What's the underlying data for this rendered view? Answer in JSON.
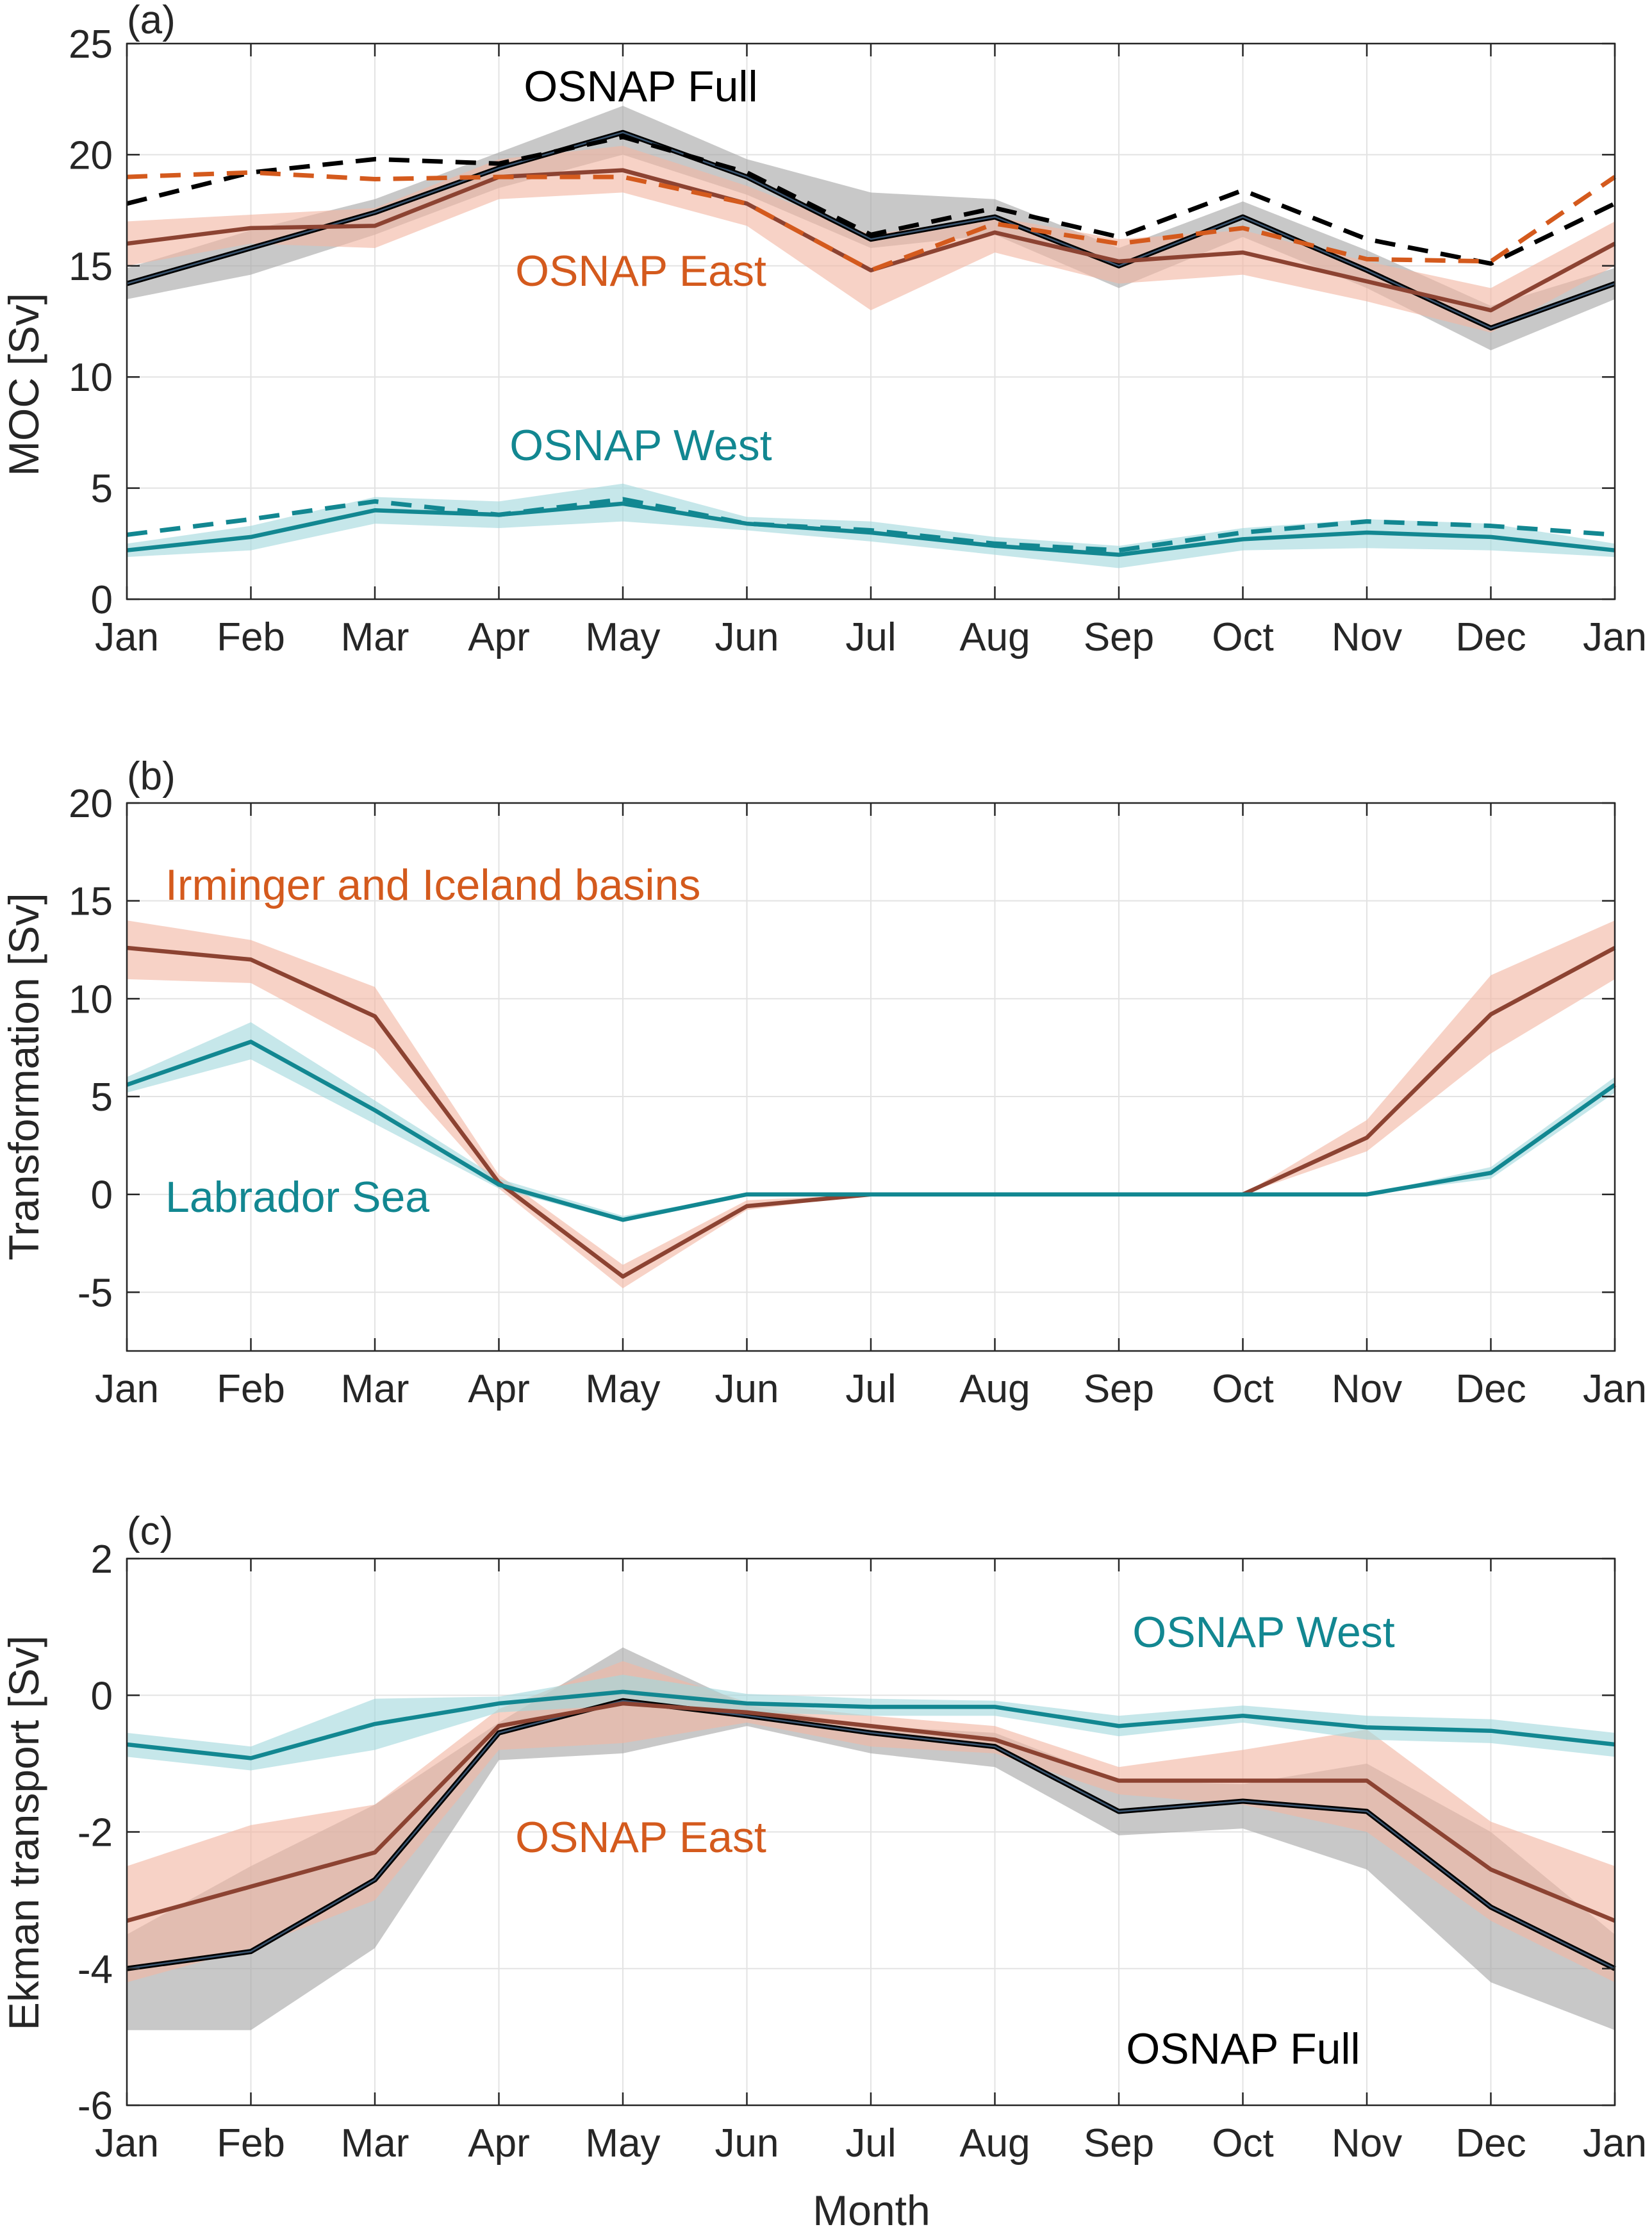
{
  "colors": {
    "full": "#000000",
    "full_band": "#a6a6a6",
    "east": "#8c4332",
    "east_dashed": "#d45a1d",
    "east_band": "#f2b7a3",
    "east_text": "#d45a1d",
    "west": "#128791",
    "west_band": "#a3d9dd",
    "west_text": "#128791",
    "grid": "#e3e3e3",
    "axis": "#262626"
  },
  "x_tick_labels": [
    "Jan",
    "Feb",
    "Mar",
    "Apr",
    "May",
    "Jun",
    "Jul",
    "Aug",
    "Sep",
    "Oct",
    "Nov",
    "Dec",
    "Jan"
  ],
  "xlabel": "Month",
  "chart_data": [
    {
      "type": "line",
      "panel_label": "(a)",
      "ylabel": "MOC [Sv]",
      "ylim": [
        0,
        25
      ],
      "yticks": [
        "0",
        "5",
        "10",
        "15",
        "20",
        "25"
      ],
      "grid": true,
      "annotations": [
        {
          "text": "OSNAP Full",
          "color_key": "full"
        },
        {
          "text": "OSNAP East",
          "color_key": "east_text"
        },
        {
          "text": "OSNAP West",
          "color_key": "west_text"
        }
      ],
      "series": [
        {
          "group": "full",
          "style": "band",
          "upper": [
            14.9,
            16.6,
            18.0,
            20.1,
            22.2,
            19.8,
            18.3,
            18.0,
            15.8,
            17.9,
            15.7,
            13.2,
            14.9
          ],
          "lower": [
            13.5,
            14.6,
            16.4,
            18.5,
            20.0,
            18.2,
            15.8,
            16.4,
            14.0,
            16.3,
            14.0,
            11.2,
            13.5
          ]
        },
        {
          "group": "east",
          "style": "band",
          "upper": [
            17.0,
            17.3,
            17.6,
            19.8,
            20.4,
            18.6,
            16.4,
            17.2,
            16.2,
            16.6,
            15.2,
            14.0,
            17.0
          ],
          "lower": [
            15.0,
            16.0,
            15.8,
            18.0,
            18.3,
            16.8,
            13.0,
            15.6,
            14.2,
            14.6,
            13.4,
            12.0,
            15.0
          ]
        },
        {
          "group": "west",
          "style": "band",
          "upper": [
            2.5,
            3.3,
            4.6,
            4.4,
            5.2,
            3.7,
            3.5,
            2.8,
            2.4,
            3.2,
            3.6,
            3.4,
            2.5
          ],
          "lower": [
            1.9,
            2.2,
            3.4,
            3.2,
            3.5,
            3.1,
            2.6,
            2.0,
            1.4,
            2.2,
            2.3,
            2.2,
            1.9
          ]
        },
        {
          "group": "full",
          "style": "solid",
          "values": [
            14.2,
            15.8,
            17.4,
            19.4,
            21.0,
            19.0,
            16.2,
            17.2,
            15.0,
            17.2,
            14.8,
            12.2,
            14.2
          ]
        },
        {
          "group": "east",
          "style": "solid",
          "values": [
            16.0,
            16.7,
            16.8,
            19.0,
            19.3,
            17.8,
            14.8,
            16.5,
            15.2,
            15.6,
            14.3,
            13.0,
            16.0
          ]
        },
        {
          "group": "west",
          "style": "solid",
          "values": [
            2.2,
            2.8,
            4.0,
            3.8,
            4.3,
            3.4,
            3.0,
            2.4,
            2.0,
            2.7,
            3.0,
            2.8,
            2.2
          ]
        },
        {
          "group": "full",
          "style": "dashed",
          "values": [
            17.8,
            19.2,
            19.8,
            19.6,
            20.8,
            19.2,
            16.4,
            17.6,
            16.3,
            18.4,
            16.2,
            15.1,
            17.8
          ]
        },
        {
          "group": "east_dashed",
          "style": "dashed",
          "values": [
            19.0,
            19.2,
            18.9,
            19.0,
            19.0,
            17.8,
            14.8,
            16.9,
            16.0,
            16.7,
            15.3,
            15.2,
            19.0
          ]
        },
        {
          "group": "west",
          "style": "dashed",
          "values": [
            2.9,
            3.6,
            4.4,
            3.8,
            4.5,
            3.4,
            3.1,
            2.5,
            2.2,
            3.0,
            3.5,
            3.3,
            2.9
          ]
        }
      ]
    },
    {
      "type": "line",
      "panel_label": "(b)",
      "ylabel": "Transformation [Sv]",
      "ylim": [
        -8,
        20
      ],
      "yticks": [
        "-5",
        "0",
        "5",
        "10",
        "15",
        "20"
      ],
      "grid": true,
      "annotations": [
        {
          "text": "Irminger and Iceland basins",
          "color_key": "east_text"
        },
        {
          "text": "Labrador Sea",
          "color_key": "west_text"
        }
      ],
      "series": [
        {
          "group": "east",
          "style": "band",
          "upper": [
            14.0,
            13.0,
            10.6,
            1.0,
            -3.6,
            -0.3,
            0,
            0,
            0,
            0,
            3.8,
            11.2,
            14.0
          ],
          "lower": [
            11.0,
            10.8,
            7.4,
            0.3,
            -4.8,
            -0.8,
            0,
            0,
            0,
            0,
            2.2,
            7.2,
            11.0
          ]
        },
        {
          "group": "west",
          "style": "band",
          "upper": [
            6.0,
            8.8,
            4.8,
            0.8,
            -1.1,
            0,
            0,
            0,
            0,
            0,
            0,
            1.4,
            6.0
          ],
          "lower": [
            5.2,
            6.9,
            3.6,
            0.3,
            -1.4,
            0,
            0,
            0,
            0,
            0,
            0,
            0.8,
            5.2
          ]
        },
        {
          "group": "east",
          "style": "solid",
          "values": [
            12.6,
            12.0,
            9.1,
            0.6,
            -4.2,
            -0.6,
            0,
            0,
            0,
            0,
            2.9,
            9.2,
            12.6
          ]
        },
        {
          "group": "west",
          "style": "solid",
          "values": [
            5.6,
            7.8,
            4.3,
            0.5,
            -1.3,
            0,
            0,
            0,
            0,
            0,
            0,
            1.1,
            5.6
          ]
        }
      ]
    },
    {
      "type": "line",
      "panel_label": "(c)",
      "ylabel": "Ekman transport [Sv]",
      "ylim": [
        -6,
        2
      ],
      "yticks": [
        "-6",
        "-4",
        "-2",
        "0",
        "2"
      ],
      "grid": true,
      "annotations": [
        {
          "text": "OSNAP West",
          "color_key": "west_text"
        },
        {
          "text": "OSNAP East",
          "color_key": "east_text"
        },
        {
          "text": "OSNAP Full",
          "color_key": "full"
        }
      ],
      "series": [
        {
          "group": "full",
          "style": "band",
          "upper": [
            -3.5,
            -2.5,
            -1.6,
            -0.4,
            0.7,
            -0.15,
            -0.45,
            -0.55,
            -1.25,
            -1.3,
            -1.0,
            -2.0,
            -3.5
          ],
          "lower": [
            -4.9,
            -4.9,
            -3.7,
            -0.95,
            -0.85,
            -0.45,
            -0.85,
            -1.05,
            -2.05,
            -1.95,
            -2.55,
            -4.2,
            -4.9
          ]
        },
        {
          "group": "east",
          "style": "band",
          "upper": [
            -2.5,
            -1.9,
            -1.6,
            -0.2,
            0.5,
            -0.1,
            -0.3,
            -0.45,
            -1.05,
            -0.8,
            -0.5,
            -1.85,
            -2.5
          ],
          "lower": [
            -4.2,
            -3.7,
            -3.0,
            -0.8,
            -0.7,
            -0.4,
            -0.75,
            -0.85,
            -1.45,
            -1.6,
            -2.0,
            -3.3,
            -4.2
          ]
        },
        {
          "group": "west",
          "style": "band",
          "upper": [
            -0.55,
            -0.75,
            -0.05,
            -0.02,
            0.3,
            0.02,
            -0.05,
            -0.08,
            -0.3,
            -0.15,
            -0.3,
            -0.35,
            -0.55
          ],
          "lower": [
            -0.9,
            -1.1,
            -0.8,
            -0.25,
            -0.15,
            -0.25,
            -0.3,
            -0.3,
            -0.6,
            -0.4,
            -0.65,
            -0.7,
            -0.9
          ]
        },
        {
          "group": "full",
          "style": "solid",
          "values": [
            -4.0,
            -3.75,
            -2.7,
            -0.55,
            -0.08,
            -0.3,
            -0.55,
            -0.75,
            -1.7,
            -1.55,
            -1.7,
            -3.1,
            -4.0
          ]
        },
        {
          "group": "east",
          "style": "solid",
          "values": [
            -3.3,
            -2.8,
            -2.3,
            -0.45,
            -0.12,
            -0.25,
            -0.45,
            -0.65,
            -1.25,
            -1.25,
            -1.25,
            -2.55,
            -3.3
          ]
        },
        {
          "group": "west",
          "style": "solid",
          "values": [
            -0.72,
            -0.92,
            -0.42,
            -0.12,
            0.05,
            -0.12,
            -0.17,
            -0.17,
            -0.45,
            -0.3,
            -0.47,
            -0.52,
            -0.72
          ]
        }
      ]
    }
  ]
}
